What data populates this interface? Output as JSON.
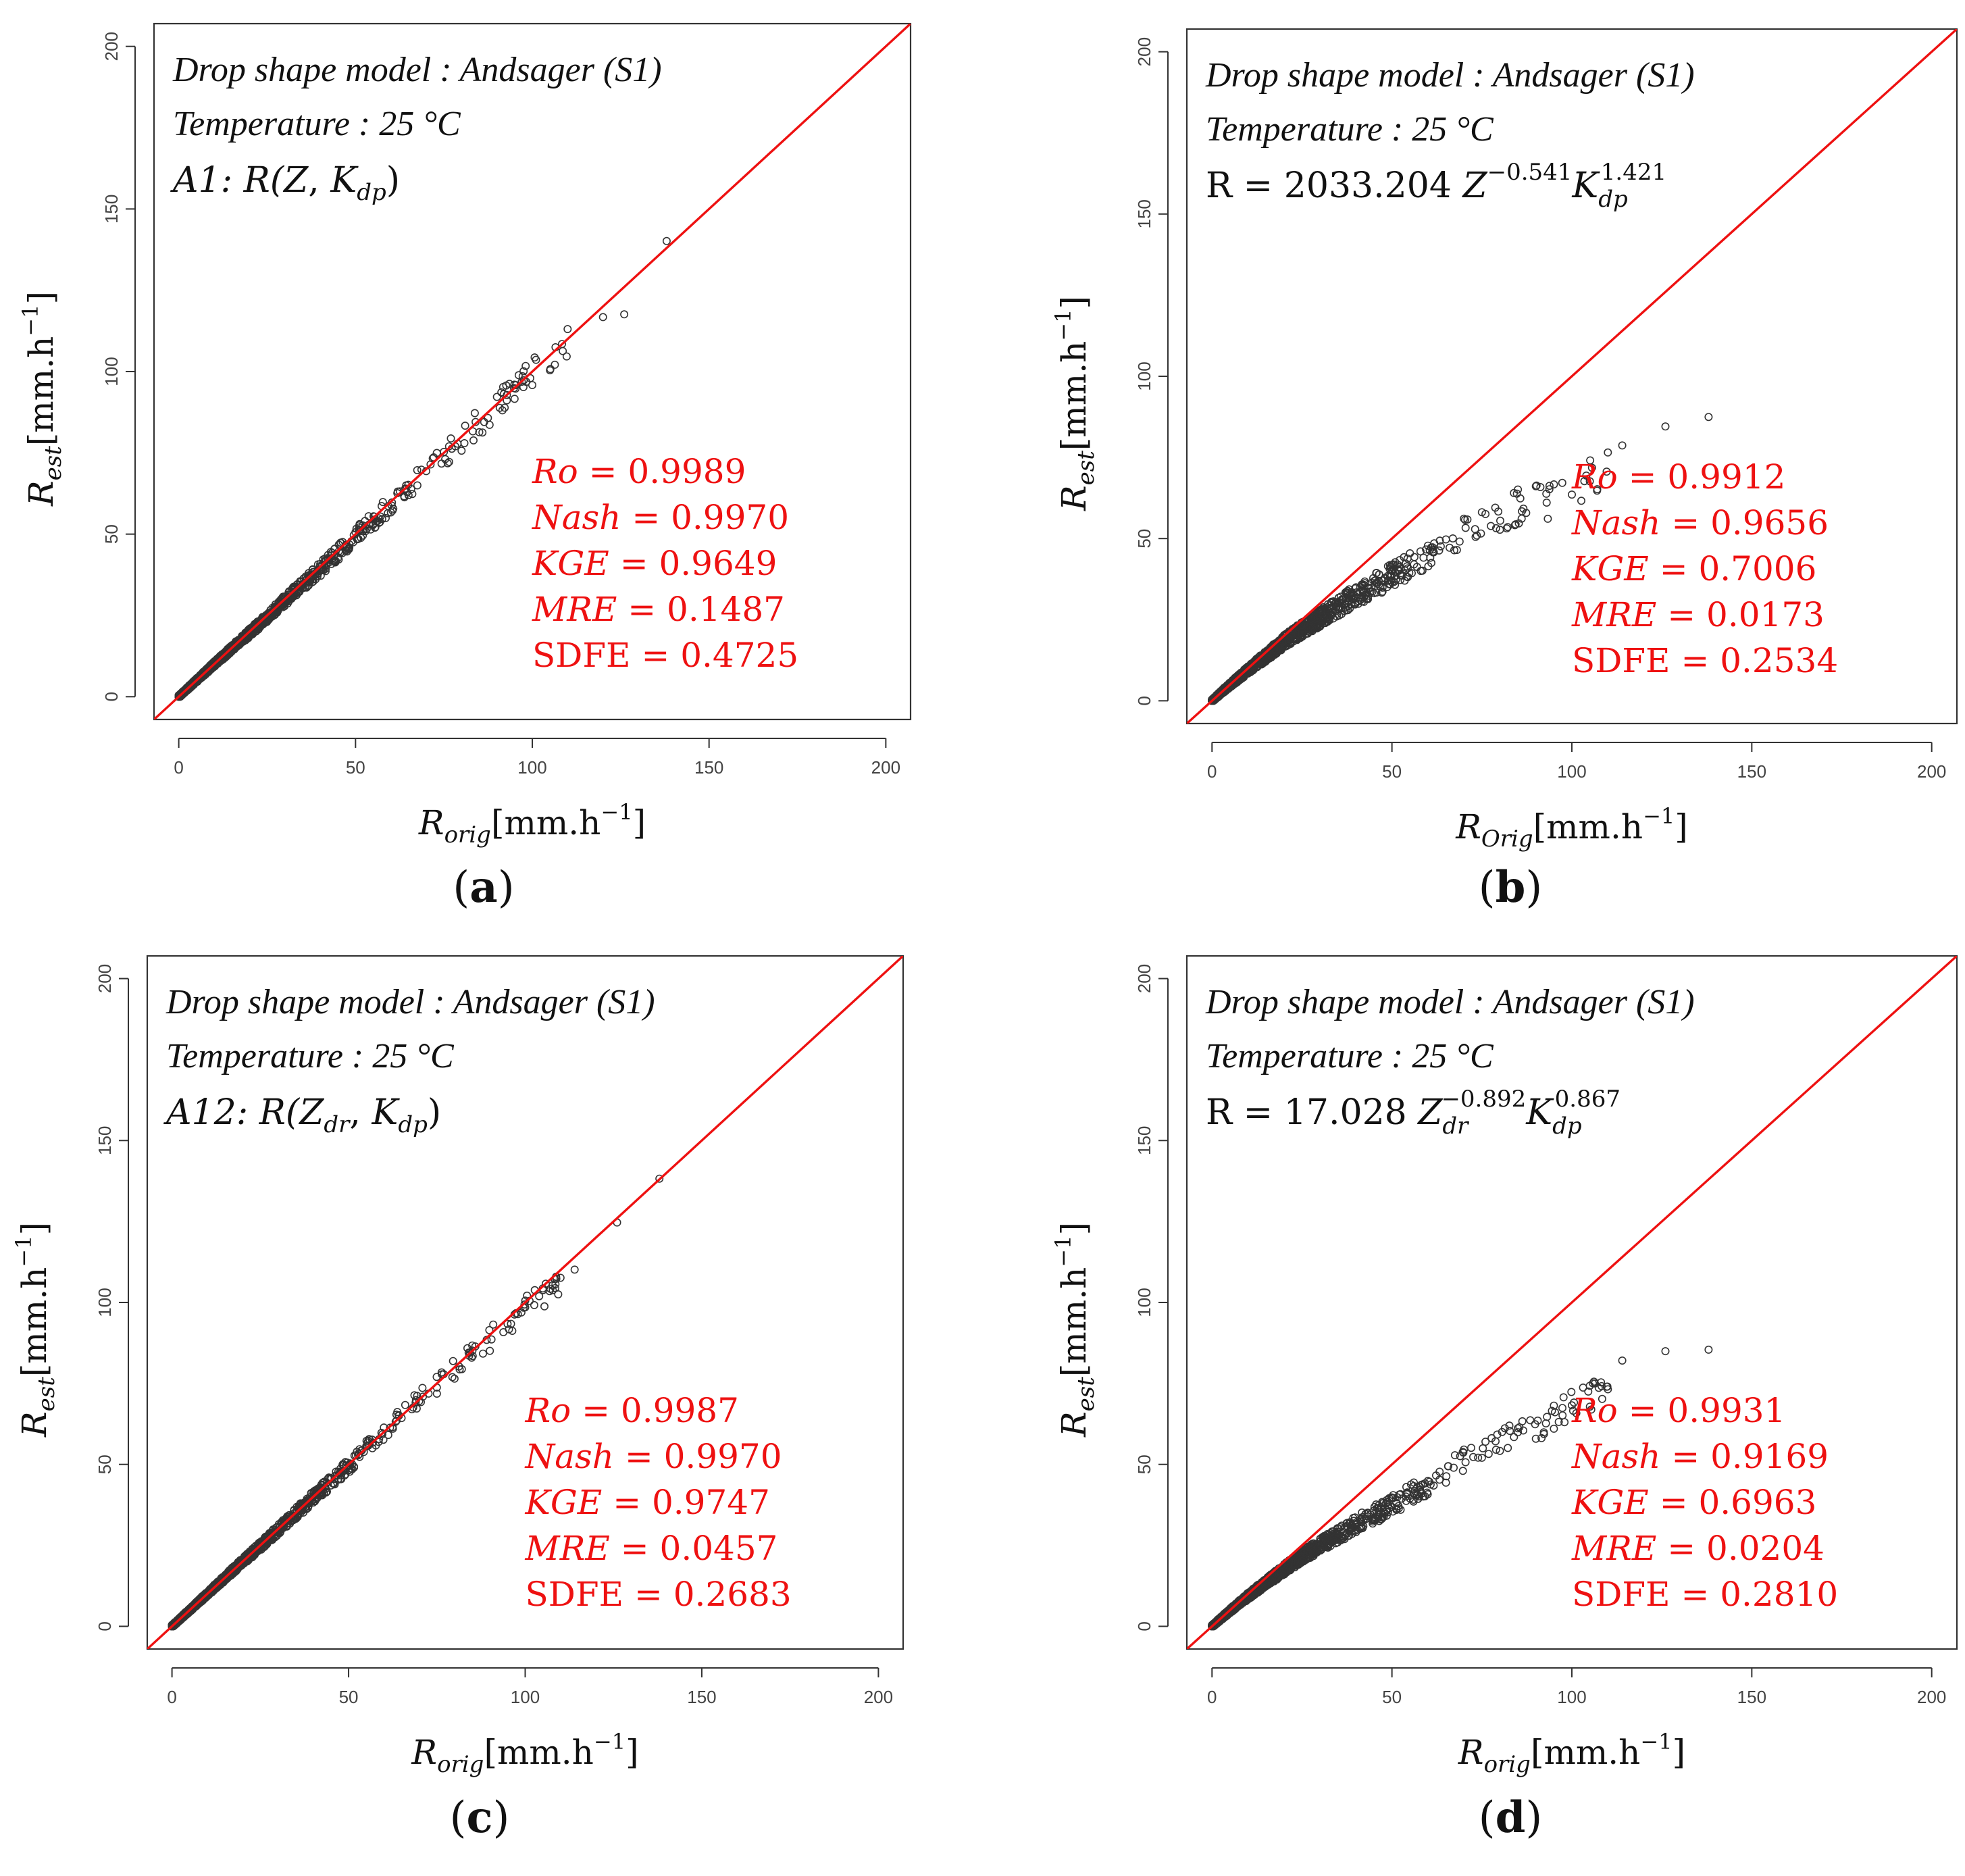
{
  "colors": {
    "identity_line": "#ee1111",
    "stats_text": "#ee1111",
    "points": "#333333",
    "axis": "#333333"
  },
  "chart_data": [
    {
      "panel": "(a)",
      "type": "scatter",
      "xlim": [
        0,
        200
      ],
      "ylim": [
        0,
        200
      ],
      "xticks": [
        0,
        50,
        100,
        150,
        200
      ],
      "yticks": [
        0,
        50,
        100,
        150,
        200
      ],
      "xlabel": {
        "base": "R",
        "sub": "orig",
        "unit": "[mm.h",
        "sup": "−1",
        "close": "]"
      },
      "ylabel": {
        "base": "R",
        "sub": "est",
        "unit": "[mm.h",
        "sup": "−1",
        "close": "]"
      },
      "header": [
        "Drop shape model : Andsager (S1)",
        "Temperature : 25 °C"
      ],
      "model": {
        "prefix": "A1: R(",
        "p1": "Z",
        "p1_sub": "",
        "sep": ", ",
        "p2": "K",
        "p2_sub": "dp",
        "suffix": ")"
      },
      "stats": [
        {
          "name": "Ro",
          "value": "0.9989"
        },
        {
          "name": "Nash",
          "value": "0.9970"
        },
        {
          "name": "KGE",
          "value": "0.9649"
        },
        {
          "name": "MRE",
          "value": "0.1487"
        },
        {
          "name": "SDFE",
          "value": "0.4725"
        }
      ],
      "identity_line": {
        "from": [
          -10,
          -10
        ],
        "to": [
          210,
          210
        ]
      },
      "anchors": [
        [
          0,
          0
        ],
        [
          3,
          3
        ],
        [
          6,
          6
        ],
        [
          10,
          10
        ],
        [
          15,
          14.8
        ],
        [
          20,
          19.6
        ],
        [
          25,
          24.5
        ],
        [
          30,
          29.6
        ],
        [
          35,
          34.4
        ],
        [
          40,
          39.2
        ],
        [
          45,
          44.3
        ],
        [
          50,
          49.5
        ],
        [
          55,
          54.3
        ],
        [
          60,
          59.2
        ],
        [
          65,
          64.5
        ],
        [
          70,
          70.2
        ],
        [
          75,
          74
        ],
        [
          80,
          79
        ],
        [
          85,
          84.6
        ],
        [
          90,
          89
        ],
        [
          95,
          94
        ],
        [
          100,
          99
        ],
        [
          105,
          104
        ],
        [
          110,
          108
        ],
        [
          120,
          114
        ],
        [
          126,
          119
        ],
        [
          138,
          135
        ]
      ],
      "spread": 0.045
    },
    {
      "panel": "(b)",
      "type": "scatter",
      "xlim": [
        0,
        200
      ],
      "ylim": [
        0,
        200
      ],
      "xticks": [
        0,
        50,
        100,
        150,
        200
      ],
      "yticks": [
        0,
        50,
        100,
        150,
        200
      ],
      "xlabel": {
        "base": "R",
        "sub": "Orig",
        "unit": "[mm.h",
        "sup": "−1",
        "close": "]"
      },
      "ylabel": {
        "base": "R",
        "sub": "est",
        "unit": "[mm.h",
        "sup": "−1",
        "close": "]"
      },
      "header": [
        "Drop shape model : Andsager (S1)",
        "Temperature : 25 °C"
      ],
      "equation": {
        "lhs": "R = 2033.204 ",
        "t1": "Z",
        "t1_sub": "",
        "t1_sup": "−0.541",
        "t2": "K",
        "t2_sub": "dp",
        "t2_sup": "1.421"
      },
      "stats": [
        {
          "name": "Ro",
          "value": "0.9912"
        },
        {
          "name": "Nash",
          "value": "0.9656"
        },
        {
          "name": "KGE",
          "value": "0.7006"
        },
        {
          "name": "MRE",
          "value": "0.0173"
        },
        {
          "name": "SDFE",
          "value": "0.2534"
        }
      ],
      "identity_line": {
        "from": [
          -10,
          -10
        ],
        "to": [
          210,
          210
        ]
      },
      "anchors": [
        [
          0,
          0
        ],
        [
          3,
          3
        ],
        [
          6,
          5.8
        ],
        [
          10,
          9.5
        ],
        [
          15,
          13.8
        ],
        [
          20,
          18.2
        ],
        [
          25,
          22
        ],
        [
          30,
          25.5
        ],
        [
          35,
          29
        ],
        [
          40,
          32.5
        ],
        [
          45,
          35.5
        ],
        [
          50,
          38.5
        ],
        [
          55,
          41.5
        ],
        [
          60,
          44
        ],
        [
          65,
          47
        ],
        [
          70,
          52
        ],
        [
          75,
          54
        ],
        [
          80,
          57
        ],
        [
          85,
          59.5
        ],
        [
          90,
          61
        ],
        [
          95,
          62
        ],
        [
          100,
          66
        ],
        [
          105,
          69
        ],
        [
          110,
          72
        ],
        [
          114,
          79
        ],
        [
          126,
          85
        ],
        [
          138,
          91
        ]
      ],
      "spread": 0.09
    },
    {
      "panel": "(c)",
      "type": "scatter",
      "xlim": [
        0,
        200
      ],
      "ylim": [
        0,
        200
      ],
      "xticks": [
        0,
        50,
        100,
        150,
        200
      ],
      "yticks": [
        0,
        50,
        100,
        150,
        200
      ],
      "xlabel": {
        "base": "R",
        "sub": "orig",
        "unit": "[mm.h",
        "sup": "−1",
        "close": "]"
      },
      "ylabel": {
        "base": "R",
        "sub": "est",
        "unit": "[mm.h",
        "sup": "−1",
        "close": "]"
      },
      "header": [
        "Drop shape model : Andsager (S1)",
        "Temperature : 25 °C"
      ],
      "model": {
        "prefix": "A12: R(",
        "p1": "Z",
        "p1_sub": "dr",
        "sep": ", ",
        "p2": "K",
        "p2_sub": "dp",
        "suffix": ")"
      },
      "stats": [
        {
          "name": "Ro",
          "value": "0.9987"
        },
        {
          "name": "Nash",
          "value": "0.9970"
        },
        {
          "name": "KGE",
          "value": "0.9747"
        },
        {
          "name": "MRE",
          "value": "0.0457"
        },
        {
          "name": "SDFE",
          "value": "0.2683"
        }
      ],
      "identity_line": {
        "from": [
          -10,
          -10
        ],
        "to": [
          210,
          210
        ]
      },
      "anchors": [
        [
          0,
          0
        ],
        [
          3,
          3
        ],
        [
          6,
          6
        ],
        [
          10,
          10
        ],
        [
          15,
          15
        ],
        [
          20,
          20
        ],
        [
          25,
          24.8
        ],
        [
          30,
          29.8
        ],
        [
          35,
          34.8
        ],
        [
          40,
          39.8
        ],
        [
          45,
          44.8
        ],
        [
          50,
          49.8
        ],
        [
          55,
          54.8
        ],
        [
          60,
          59.8
        ],
        [
          65,
          64.5
        ],
        [
          70,
          70
        ],
        [
          75,
          74.5
        ],
        [
          80,
          79
        ],
        [
          85,
          84
        ],
        [
          90,
          89
        ],
        [
          95,
          93
        ],
        [
          100,
          99
        ],
        [
          105,
          103
        ],
        [
          110,
          106
        ],
        [
          114,
          113
        ],
        [
          126,
          124
        ],
        [
          138,
          136
        ]
      ],
      "spread": 0.04
    },
    {
      "panel": "(d)",
      "type": "scatter",
      "xlim": [
        0,
        200
      ],
      "ylim": [
        0,
        200
      ],
      "xticks": [
        0,
        50,
        100,
        150,
        200
      ],
      "yticks": [
        0,
        50,
        100,
        150,
        200
      ],
      "xlabel": {
        "base": "R",
        "sub": "orig",
        "unit": "[mm.h",
        "sup": "−1",
        "close": "]"
      },
      "ylabel": {
        "base": "R",
        "sub": "est",
        "unit": "[mm.h",
        "sup": "−1",
        "close": "]"
      },
      "header": [
        "Drop shape model : Andsager (S1)",
        "Temperature : 25 °C"
      ],
      "equation": {
        "lhs": "R = 17.028 ",
        "t1": "Z",
        "t1_sub": "dr",
        "t1_sup": "−0.892",
        "t2": "K",
        "t2_sub": "dp",
        "t2_sup": "0.867"
      },
      "stats": [
        {
          "name": "Ro",
          "value": "0.9931"
        },
        {
          "name": "Nash",
          "value": "0.9169"
        },
        {
          "name": "KGE",
          "value": "0.6963"
        },
        {
          "name": "MRE",
          "value": "0.0204"
        },
        {
          "name": "SDFE",
          "value": "0.2810"
        }
      ],
      "identity_line": {
        "from": [
          -10,
          -10
        ],
        "to": [
          210,
          210
        ]
      },
      "anchors": [
        [
          0,
          0
        ],
        [
          3,
          2.9
        ],
        [
          6,
          5.7
        ],
        [
          10,
          9.3
        ],
        [
          15,
          13.5
        ],
        [
          20,
          17.6
        ],
        [
          25,
          21.5
        ],
        [
          30,
          25
        ],
        [
          35,
          28.2
        ],
        [
          40,
          31.5
        ],
        [
          45,
          34.5
        ],
        [
          50,
          37.5
        ],
        [
          55,
          40.5
        ],
        [
          60,
          44
        ],
        [
          65,
          47
        ],
        [
          70,
          51
        ],
        [
          75,
          53.5
        ],
        [
          80,
          57
        ],
        [
          85,
          59
        ],
        [
          90,
          62
        ],
        [
          95,
          64
        ],
        [
          100,
          67.5
        ],
        [
          105,
          70
        ],
        [
          110,
          73
        ],
        [
          114,
          77
        ],
        [
          126,
          83
        ],
        [
          138,
          91
        ]
      ],
      "spread": 0.07
    }
  ]
}
